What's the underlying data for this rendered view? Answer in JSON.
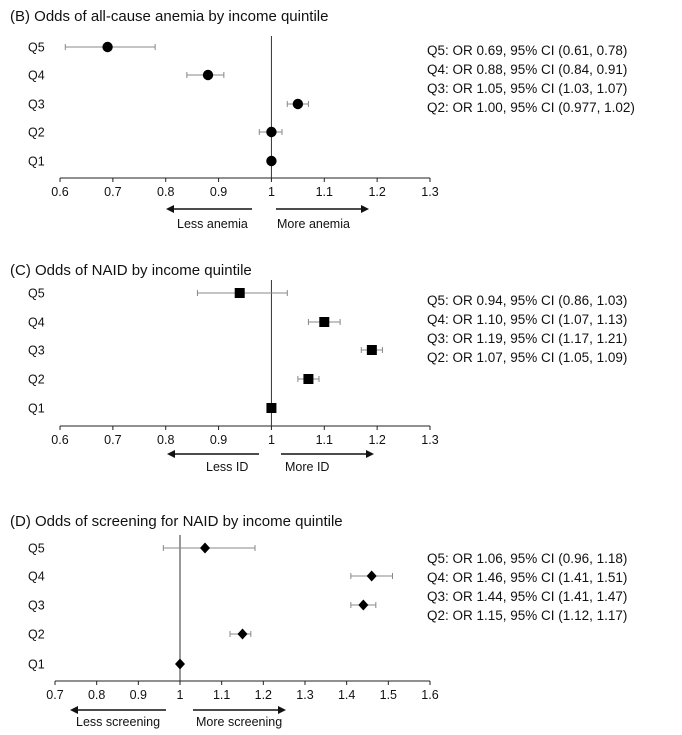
{
  "panels": [
    {
      "title": "(B) Odds of all-cause anemia by income quintile",
      "chart_data": {
        "type": "forest",
        "marker": "circle",
        "categories": [
          "Q5",
          "Q4",
          "Q3",
          "Q2",
          "Q1"
        ],
        "or": [
          0.69,
          0.88,
          1.05,
          1.0,
          1.0
        ],
        "ci_low": [
          0.61,
          0.84,
          1.03,
          0.977,
          1.0
        ],
        "ci_high": [
          0.78,
          0.91,
          1.07,
          1.02,
          1.0
        ],
        "xlim": [
          0.6,
          1.3
        ],
        "xticks": [
          "0.6",
          "0.7",
          "0.8",
          "0.9",
          "1",
          "1.1",
          "1.2",
          "1.3"
        ],
        "reference_line": 1
      },
      "stats": [
        "Q5: OR 0.69, 95% CI (0.61, 0.78)",
        "Q4: OR 0.88, 95% CI (0.84, 0.91)",
        "Q3: OR 1.05, 95% CI (1.03, 1.07)",
        "Q2: OR 1.00, 95% CI (0.977, 1.02)"
      ],
      "left_label": "Less anemia",
      "right_label": "More anemia"
    },
    {
      "title": "(C) Odds of NAID by income quintile",
      "chart_data": {
        "type": "forest",
        "marker": "square",
        "categories": [
          "Q5",
          "Q4",
          "Q3",
          "Q2",
          "Q1"
        ],
        "or": [
          0.94,
          1.1,
          1.19,
          1.07,
          1.0
        ],
        "ci_low": [
          0.86,
          1.07,
          1.17,
          1.05,
          1.0
        ],
        "ci_high": [
          1.03,
          1.13,
          1.21,
          1.09,
          1.0
        ],
        "xlim": [
          0.6,
          1.3
        ],
        "xticks": [
          "0.6",
          "0.7",
          "0.8",
          "0.9",
          "1",
          "1.1",
          "1.2",
          "1.3"
        ],
        "reference_line": 1
      },
      "stats": [
        "Q5: OR 0.94, 95% CI (0.86, 1.03)",
        "Q4: OR 1.10, 95% CI (1.07, 1.13)",
        "Q3: OR 1.19, 95% CI (1.17, 1.21)",
        "Q2: OR 1.07, 95% CI (1.05, 1.09)"
      ],
      "left_label": "Less ID",
      "right_label": "More ID"
    },
    {
      "title": "(D) Odds of screening for NAID by income quintile",
      "chart_data": {
        "type": "forest",
        "marker": "diamond",
        "categories": [
          "Q5",
          "Q4",
          "Q3",
          "Q2",
          "Q1"
        ],
        "or": [
          1.06,
          1.46,
          1.44,
          1.15,
          1.0
        ],
        "ci_low": [
          0.96,
          1.41,
          1.41,
          1.12,
          1.0
        ],
        "ci_high": [
          1.18,
          1.51,
          1.47,
          1.17,
          1.0
        ],
        "xlim": [
          0.7,
          1.6
        ],
        "xticks": [
          "0.7",
          "0.8",
          "0.9",
          "1",
          "1.1",
          "1.2",
          "1.3",
          "1.4",
          "1.5",
          "1.6"
        ],
        "reference_line": 1
      },
      "stats": [
        "Q5: OR 1.06, 95% CI (0.96, 1.18)",
        "Q4: OR 1.46, 95% CI (1.41, 1.51)",
        "Q3: OR 1.44, 95% CI (1.41, 1.47)",
        "Q2: OR 1.15, 95% CI (1.12, 1.17)"
      ],
      "left_label": "Less screening",
      "right_label": "More screening"
    }
  ]
}
